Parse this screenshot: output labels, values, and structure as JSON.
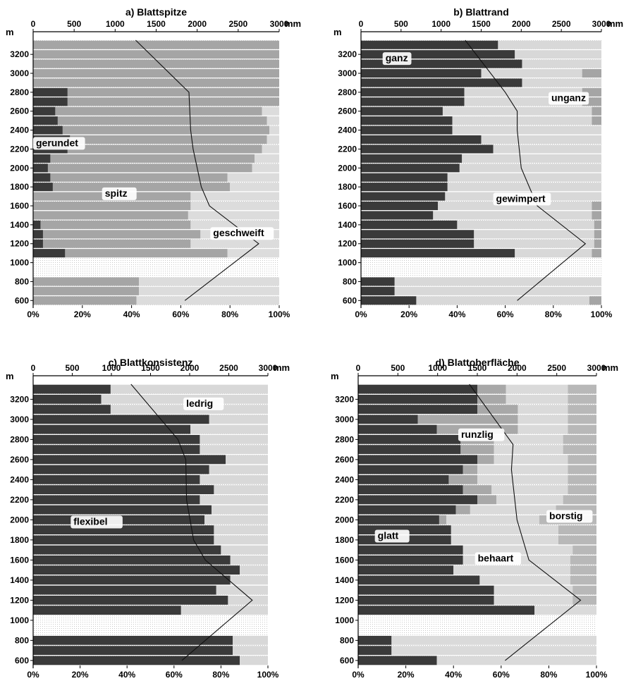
{
  "figure": {
    "top_axis_unit": "mm",
    "left_axis_unit": "m"
  },
  "chart_data": [
    {
      "type": "bar",
      "title": "a) Blattspitze",
      "y_ticks": [
        3200,
        3000,
        2800,
        2600,
        2400,
        2200,
        2000,
        1800,
        1600,
        1400,
        1200,
        1000,
        800,
        600
      ],
      "x_ticks": [
        0,
        20,
        40,
        60,
        80,
        100
      ],
      "x_tick_labels": [
        "0%",
        "20%",
        "40%",
        "60%",
        "80%",
        "100%"
      ],
      "top_ticks": [
        0,
        500,
        1000,
        1500,
        2000,
        2500,
        3000
      ],
      "top_tick_labels": [
        "0",
        "500",
        "1000",
        "1500",
        "2000",
        "2500",
        "3000"
      ],
      "xlim": [
        0,
        100
      ],
      "ylim": [
        550,
        3350
      ],
      "toplim": [
        0,
        3000
      ],
      "series": [
        {
          "name": "gerundet",
          "color": "#3a3a3a",
          "x": [
            3300,
            3200,
            3100,
            3000,
            2900,
            2800,
            2700,
            2600,
            2500,
            2400,
            2300,
            2200,
            2100,
            2000,
            1900,
            1800,
            1700,
            1600,
            1500,
            1400,
            1300,
            1200,
            1100,
            800,
            700,
            600
          ],
          "values": [
            0,
            0,
            0,
            0,
            0,
            14,
            14,
            9,
            10,
            12,
            15,
            14,
            7,
            6,
            7,
            8,
            0,
            0,
            0,
            3,
            4,
            4,
            13,
            0,
            0,
            0
          ]
        },
        {
          "name": "spitz",
          "color": "#a5a5a5",
          "x": [
            3300,
            3200,
            3100,
            3000,
            2900,
            2800,
            2700,
            2600,
            2500,
            2400,
            2300,
            2200,
            2100,
            2000,
            1900,
            1800,
            1700,
            1600,
            1500,
            1400,
            1300,
            1200,
            1100,
            800,
            700,
            600
          ],
          "values": [
            100,
            100,
            100,
            100,
            100,
            86,
            86,
            84,
            85,
            84,
            80,
            79,
            83,
            83,
            72,
            72,
            64,
            64,
            63,
            61,
            64,
            60,
            66,
            43,
            43,
            42
          ]
        },
        {
          "name": "geschweift",
          "color": "#dcdcdc",
          "x": [
            3300,
            3200,
            3100,
            3000,
            2900,
            2800,
            2700,
            2600,
            2500,
            2400,
            2300,
            2200,
            2100,
            2000,
            1900,
            1800,
            1700,
            1600,
            1500,
            1400,
            1300,
            1200,
            1100,
            800,
            700,
            600
          ],
          "values": [
            0,
            0,
            0,
            0,
            0,
            0,
            0,
            7,
            5,
            4,
            5,
            7,
            10,
            11,
            21,
            20,
            36,
            36,
            37,
            36,
            32,
            36,
            21,
            57,
            57,
            58
          ]
        }
      ],
      "line": {
        "name": "precipitation",
        "altitude": [
          3350,
          2800,
          2400,
          2200,
          1800,
          1600,
          1200,
          600
        ],
        "mm": [
          1250,
          1900,
          1920,
          1950,
          2050,
          2150,
          2750,
          1850
        ]
      },
      "annotations": [
        "gerundet",
        "spitz",
        "geschweift"
      ]
    },
    {
      "type": "bar",
      "title": "b) Blattrand",
      "y_ticks": [
        3200,
        3000,
        2800,
        2600,
        2400,
        2200,
        2000,
        1800,
        1600,
        1400,
        1200,
        1000,
        800,
        600
      ],
      "x_ticks": [
        0,
        20,
        40,
        60,
        80,
        100
      ],
      "x_tick_labels": [
        "0%",
        "20%",
        "40%",
        "60%",
        "80%",
        "100%"
      ],
      "top_ticks": [
        0,
        500,
        1000,
        1500,
        2000,
        2500,
        3000
      ],
      "top_tick_labels": [
        "0",
        "500",
        "1000",
        "1500",
        "2000",
        "2500",
        "3000"
      ],
      "xlim": [
        0,
        100
      ],
      "ylim": [
        550,
        3350
      ],
      "toplim": [
        0,
        3000
      ],
      "series": [
        {
          "name": "ganz",
          "color": "#3a3a3a",
          "x": [
            3300,
            3200,
            3100,
            3000,
            2900,
            2800,
            2700,
            2600,
            2500,
            2400,
            2300,
            2200,
            2100,
            2000,
            1900,
            1800,
            1700,
            1600,
            1500,
            1400,
            1300,
            1200,
            1100,
            800,
            700,
            600
          ],
          "values": [
            57,
            64,
            67,
            50,
            67,
            43,
            43,
            34,
            38,
            38,
            50,
            55,
            42,
            41,
            36,
            36,
            35,
            32,
            30,
            40,
            47,
            47,
            64,
            14,
            14,
            23
          ]
        },
        {
          "name": "gewimpert",
          "color": "#d8d8d8",
          "x": [
            3300,
            3200,
            3100,
            3000,
            2900,
            2800,
            2700,
            2600,
            2500,
            2400,
            2300,
            2200,
            2100,
            2000,
            1900,
            1800,
            1700,
            1600,
            1500,
            1400,
            1300,
            1200,
            1100,
            800,
            700,
            600
          ],
          "values": [
            43,
            36,
            33,
            42,
            33,
            49,
            49,
            62,
            58,
            62,
            50,
            45,
            58,
            59,
            64,
            64,
            65,
            64,
            66,
            57,
            50,
            50,
            32,
            86,
            86,
            72
          ]
        },
        {
          "name": "unganz",
          "color": "#a5a5a5",
          "x": [
            3300,
            3200,
            3100,
            3000,
            2900,
            2800,
            2700,
            2600,
            2500,
            2400,
            2300,
            2200,
            2100,
            2000,
            1900,
            1800,
            1700,
            1600,
            1500,
            1400,
            1300,
            1200,
            1100,
            800,
            700,
            600
          ],
          "values": [
            0,
            0,
            0,
            8,
            0,
            8,
            8,
            4,
            4,
            0,
            0,
            0,
            0,
            0,
            0,
            0,
            0,
            4,
            4,
            3,
            3,
            3,
            4,
            0,
            0,
            5
          ]
        }
      ],
      "line": {
        "name": "precipitation",
        "altitude": [
          3350,
          2800,
          2600,
          2400,
          2000,
          1600,
          1200,
          600
        ],
        "mm": [
          1300,
          1800,
          1950,
          1950,
          2000,
          2200,
          2800,
          1950
        ]
      },
      "annotations": [
        "ganz",
        "unganz",
        "gewimpert"
      ]
    },
    {
      "type": "bar",
      "title": "c) Blattkonsistenz",
      "y_ticks": [
        3200,
        3000,
        2800,
        2600,
        2400,
        2200,
        2000,
        1800,
        1600,
        1400,
        1200,
        1000,
        800,
        600
      ],
      "x_ticks": [
        0,
        20,
        40,
        60,
        80,
        100
      ],
      "x_tick_labels": [
        "0%",
        "20%",
        "40%",
        "60%",
        "80%",
        "100%"
      ],
      "top_ticks": [
        0,
        500,
        1000,
        1500,
        2000,
        2500,
        3000
      ],
      "top_tick_labels": [
        "0",
        "500",
        "1000",
        "1500",
        "2000",
        "2500",
        "3000"
      ],
      "xlim": [
        0,
        100
      ],
      "ylim": [
        550,
        3350
      ],
      "toplim": [
        0,
        3000
      ],
      "series": [
        {
          "name": "flexibel",
          "color": "#3a3a3a",
          "x": [
            3300,
            3200,
            3100,
            3000,
            2900,
            2800,
            2700,
            2600,
            2500,
            2400,
            2300,
            2200,
            2100,
            2000,
            1900,
            1800,
            1700,
            1600,
            1500,
            1400,
            1300,
            1200,
            1100,
            800,
            700,
            600
          ],
          "values": [
            33,
            29,
            33,
            75,
            67,
            71,
            71,
            82,
            75,
            71,
            77,
            71,
            76,
            73,
            77,
            77,
            80,
            84,
            88,
            84,
            78,
            83,
            63,
            85,
            85,
            88
          ]
        },
        {
          "name": "ledrig",
          "color": "#d8d8d8",
          "x": [
            3300,
            3200,
            3100,
            3000,
            2900,
            2800,
            2700,
            2600,
            2500,
            2400,
            2300,
            2200,
            2100,
            2000,
            1900,
            1800,
            1700,
            1600,
            1500,
            1400,
            1300,
            1200,
            1100,
            800,
            700,
            600
          ],
          "values": [
            67,
            71,
            67,
            25,
            33,
            29,
            29,
            18,
            25,
            29,
            23,
            29,
            24,
            27,
            23,
            23,
            20,
            16,
            12,
            16,
            22,
            17,
            37,
            15,
            15,
            12
          ]
        }
      ],
      "line": {
        "name": "precipitation",
        "altitude": [
          3350,
          2800,
          2600,
          2200,
          1800,
          1600,
          1200,
          600
        ],
        "mm": [
          1250,
          1850,
          1950,
          1960,
          2050,
          2200,
          2800,
          1900
        ]
      },
      "annotations": [
        "flexibel",
        "ledrig"
      ]
    },
    {
      "type": "bar",
      "title": "d) Blattoberfläche",
      "y_ticks": [
        3200,
        3000,
        2800,
        2600,
        2400,
        2200,
        2000,
        1800,
        1600,
        1400,
        1200,
        1000,
        800,
        600
      ],
      "x_ticks": [
        0,
        20,
        40,
        60,
        80,
        100
      ],
      "x_tick_labels": [
        "0%",
        "20%",
        "40%",
        "60%",
        "80%",
        "100%"
      ],
      "top_ticks": [
        0,
        500,
        1000,
        1500,
        2000,
        2500,
        3000
      ],
      "top_tick_labels": [
        "0",
        "500",
        "1000",
        "1500",
        "2000",
        "2500",
        "3000"
      ],
      "xlim": [
        0,
        100
      ],
      "ylim": [
        550,
        3350
      ],
      "toplim": [
        0,
        3000
      ],
      "series": [
        {
          "name": "glatt",
          "color": "#3a3a3a",
          "x": [
            3300,
            3200,
            3100,
            3000,
            2900,
            2800,
            2700,
            2600,
            2500,
            2400,
            2300,
            2200,
            2100,
            2000,
            1900,
            1800,
            1700,
            1600,
            1500,
            1400,
            1300,
            1200,
            1100,
            800,
            700,
            600
          ],
          "values": [
            50,
            50,
            50,
            25,
            33,
            43,
            43,
            50,
            44,
            38,
            44,
            50,
            41,
            34,
            39,
            39,
            44,
            44,
            40,
            51,
            57,
            57,
            74,
            14,
            14,
            33
          ]
        },
        {
          "name": "runzlig",
          "color": "#a8a8a8",
          "x": [
            3300,
            3200,
            3100,
            3000,
            2900,
            2800,
            2700,
            2600,
            2500,
            2400,
            2300,
            2200,
            2100,
            2000,
            1900,
            1800,
            1700,
            1600,
            1500,
            1400,
            1300,
            1200,
            1100,
            800,
            700,
            600
          ],
          "values": [
            12,
            12,
            17,
            42,
            34,
            14,
            14,
            7,
            6,
            12,
            12,
            8,
            6,
            3,
            0,
            0,
            0,
            0,
            0,
            0,
            0,
            0,
            0,
            0,
            0,
            0
          ]
        },
        {
          "name": "behaart",
          "color": "#dadada",
          "x": [
            3300,
            3200,
            3100,
            3000,
            2900,
            2800,
            2700,
            2600,
            2500,
            2400,
            2300,
            2200,
            2100,
            2000,
            1900,
            1800,
            1700,
            1600,
            1500,
            1400,
            1300,
            1200,
            1100,
            800,
            700,
            600
          ],
          "values": [
            26,
            26,
            21,
            21,
            21,
            29,
            29,
            31,
            38,
            38,
            32,
            28,
            36,
            39,
            45,
            45,
            46,
            45,
            49,
            38,
            33,
            33,
            26,
            86,
            86,
            67
          ]
        },
        {
          "name": "borstig",
          "color": "#b8b8b8",
          "x": [
            3300,
            3200,
            3100,
            3000,
            2900,
            2800,
            2700,
            2600,
            2500,
            2400,
            2300,
            2200,
            2100,
            2000,
            1900,
            1800,
            1700,
            1600,
            1500,
            1400,
            1300,
            1200,
            1100,
            800,
            700,
            600
          ],
          "values": [
            12,
            12,
            12,
            12,
            12,
            14,
            14,
            12,
            12,
            12,
            12,
            14,
            17,
            24,
            16,
            16,
            10,
            11,
            11,
            11,
            10,
            10,
            0,
            0,
            0,
            0
          ]
        }
      ],
      "line": {
        "name": "precipitation",
        "altitude": [
          3350,
          2750,
          2500,
          2000,
          1600,
          1200,
          600
        ],
        "mm": [
          1400,
          1950,
          1930,
          2000,
          2150,
          2800,
          1850
        ]
      },
      "annotations": [
        "glatt",
        "runzlig",
        "behaart",
        "borstig"
      ]
    }
  ]
}
